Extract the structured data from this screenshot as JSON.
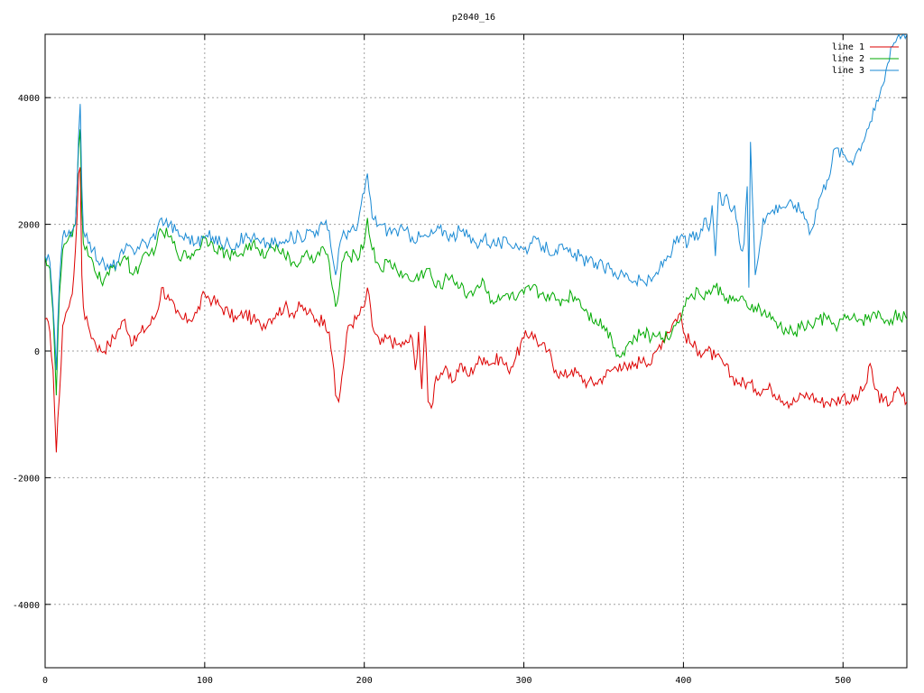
{
  "chart_data": {
    "type": "line",
    "title": "p2040_16",
    "xlim": [
      0,
      540
    ],
    "ylim": [
      -5000,
      5000
    ],
    "x_ticks": [
      0,
      100,
      200,
      300,
      400,
      500
    ],
    "y_ticks": [
      -4000,
      -2000,
      0,
      2000,
      4000
    ],
    "x_tick_labels": [
      "0",
      "100",
      "200",
      "300",
      "400",
      "500"
    ],
    "y_tick_labels": [
      "-4000",
      "-2000",
      "0",
      "2000",
      "4000"
    ],
    "grid": true,
    "legend_position": "top-right",
    "series": [
      {
        "name": "line 1",
        "color": "#dd0000",
        "x": [
          0,
          3,
          5,
          7,
          9,
          11,
          13,
          15,
          17,
          19,
          21,
          22,
          23,
          24,
          25,
          27,
          30,
          35,
          40,
          45,
          50,
          55,
          60,
          65,
          70,
          73,
          78,
          82,
          86,
          90,
          95,
          100,
          105,
          110,
          115,
          120,
          125,
          130,
          135,
          140,
          145,
          150,
          155,
          160,
          165,
          170,
          175,
          178,
          180,
          182,
          184,
          186,
          190,
          195,
          200,
          202,
          205,
          210,
          215,
          220,
          225,
          230,
          232,
          234,
          236,
          238,
          240,
          242,
          245,
          250,
          255,
          260,
          265,
          270,
          275,
          280,
          285,
          290,
          295,
          300,
          305,
          310,
          315,
          320,
          325,
          330,
          335,
          340,
          345,
          350,
          355,
          360,
          365,
          370,
          375,
          380,
          385,
          390,
          395,
          398,
          400,
          405,
          410,
          415,
          420,
          425,
          430,
          435,
          440,
          445,
          450,
          455,
          460,
          465,
          470,
          475,
          480,
          485,
          490,
          495,
          500,
          505,
          510,
          515,
          517,
          520,
          525,
          530,
          535,
          540
        ],
        "values": [
          500,
          300,
          -300,
          -1600,
          -700,
          400,
          600,
          700,
          900,
          1600,
          2800,
          2900,
          1200,
          700,
          500,
          400,
          200,
          0,
          100,
          300,
          500,
          100,
          300,
          400,
          600,
          1000,
          800,
          600,
          500,
          500,
          600,
          900,
          800,
          700,
          600,
          500,
          600,
          500,
          400,
          500,
          600,
          700,
          600,
          700,
          600,
          500,
          500,
          300,
          -100,
          -700,
          -800,
          -400,
          400,
          500,
          700,
          1000,
          400,
          100,
          200,
          100,
          100,
          200,
          -300,
          300,
          -600,
          400,
          -800,
          -900,
          -400,
          -300,
          -500,
          -200,
          -400,
          -200,
          -100,
          -200,
          -100,
          -300,
          -100,
          200,
          300,
          100,
          0,
          -300,
          -400,
          -300,
          -400,
          -500,
          -500,
          -400,
          -300,
          -200,
          -300,
          -200,
          -100,
          -200,
          100,
          300,
          500,
          600,
          300,
          100,
          0,
          0,
          -100,
          -200,
          -400,
          -500,
          -500,
          -600,
          -600,
          -600,
          -700,
          -800,
          -800,
          -700,
          -700,
          -800,
          -800,
          -800,
          -700,
          -800,
          -700,
          -500,
          -200,
          -600,
          -800,
          -800,
          -600,
          -800
        ]
      },
      {
        "name": "line 2",
        "color": "#00aa00",
        "x": [
          0,
          3,
          5,
          7,
          9,
          11,
          13,
          15,
          17,
          19,
          21,
          22,
          23,
          24,
          25,
          27,
          30,
          35,
          40,
          45,
          50,
          55,
          60,
          65,
          70,
          73,
          78,
          82,
          86,
          90,
          95,
          100,
          105,
          110,
          115,
          120,
          125,
          130,
          135,
          140,
          145,
          150,
          155,
          160,
          165,
          170,
          175,
          178,
          180,
          182,
          184,
          186,
          190,
          195,
          200,
          202,
          205,
          210,
          215,
          220,
          225,
          230,
          235,
          240,
          245,
          250,
          255,
          260,
          265,
          270,
          275,
          280,
          285,
          290,
          295,
          300,
          305,
          310,
          315,
          320,
          325,
          330,
          335,
          340,
          345,
          350,
          355,
          360,
          365,
          370,
          375,
          380,
          385,
          390,
          395,
          400,
          405,
          410,
          415,
          420,
          425,
          430,
          435,
          440,
          445,
          450,
          455,
          460,
          465,
          470,
          475,
          480,
          485,
          490,
          495,
          500,
          505,
          510,
          515,
          520,
          525,
          530,
          535,
          540
        ],
        "values": [
          1500,
          1300,
          600,
          -700,
          900,
          1600,
          1700,
          1800,
          1800,
          2000,
          3200,
          3500,
          2200,
          1700,
          1600,
          1500,
          1400,
          1100,
          1200,
          1400,
          1500,
          1200,
          1400,
          1500,
          1700,
          1900,
          1800,
          1600,
          1500,
          1500,
          1600,
          1800,
          1700,
          1600,
          1500,
          1500,
          1600,
          1700,
          1500,
          1600,
          1700,
          1500,
          1400,
          1400,
          1500,
          1500,
          1600,
          1400,
          1000,
          700,
          900,
          1400,
          1500,
          1500,
          1700,
          2100,
          1600,
          1300,
          1400,
          1300,
          1200,
          1100,
          1200,
          1300,
          1000,
          1100,
          1200,
          1000,
          900,
          1000,
          1100,
          800,
          800,
          900,
          800,
          900,
          1000,
          900,
          900,
          800,
          800,
          900,
          800,
          600,
          500,
          400,
          200,
          -100,
          100,
          200,
          300,
          200,
          300,
          200,
          400,
          700,
          900,
          900,
          900,
          1000,
          900,
          800,
          800,
          700,
          700,
          600,
          500,
          400,
          300,
          300,
          400,
          400,
          500,
          500,
          400,
          500,
          500,
          500,
          500,
          600,
          500,
          500,
          600,
          500
        ]
      },
      {
        "name": "line 3",
        "color": "#1a8ad4",
        "x": [
          0,
          3,
          5,
          7,
          9,
          11,
          13,
          15,
          17,
          19,
          21,
          22,
          23,
          24,
          25,
          27,
          30,
          35,
          40,
          45,
          50,
          55,
          60,
          65,
          70,
          73,
          78,
          82,
          86,
          90,
          95,
          100,
          105,
          110,
          115,
          120,
          125,
          130,
          135,
          140,
          145,
          150,
          155,
          160,
          165,
          170,
          175,
          178,
          180,
          182,
          184,
          186,
          190,
          195,
          200,
          202,
          205,
          210,
          215,
          220,
          225,
          230,
          235,
          240,
          245,
          250,
          255,
          260,
          265,
          270,
          275,
          280,
          285,
          290,
          295,
          300,
          305,
          310,
          315,
          320,
          325,
          330,
          335,
          340,
          345,
          350,
          355,
          360,
          365,
          370,
          375,
          380,
          385,
          390,
          395,
          400,
          403,
          405,
          410,
          412,
          414,
          416,
          418,
          420,
          422,
          425,
          428,
          430,
          432,
          434,
          436,
          438,
          440,
          441,
          442,
          445,
          450,
          455,
          460,
          465,
          470,
          475,
          478,
          480,
          485,
          490,
          495,
          500,
          505,
          510,
          515,
          520,
          525,
          530,
          535,
          538,
          540
        ],
        "values": [
          1500,
          1400,
          700,
          -300,
          1100,
          1800,
          1800,
          1900,
          1900,
          2000,
          3400,
          3900,
          2600,
          1900,
          1800,
          1700,
          1600,
          1400,
          1300,
          1400,
          1600,
          1600,
          1700,
          1700,
          1900,
          2100,
          2000,
          1900,
          1800,
          1800,
          1700,
          1800,
          1800,
          1700,
          1700,
          1700,
          1800,
          1800,
          1700,
          1700,
          1700,
          1700,
          1800,
          1800,
          1900,
          1900,
          2000,
          1900,
          1500,
          1200,
          1600,
          1800,
          1900,
          1900,
          2500,
          2800,
          2100,
          2000,
          1900,
          1900,
          1900,
          1800,
          1800,
          1800,
          1900,
          1900,
          1800,
          1900,
          1800,
          1700,
          1800,
          1700,
          1700,
          1700,
          1700,
          1600,
          1700,
          1700,
          1600,
          1600,
          1600,
          1500,
          1500,
          1400,
          1400,
          1300,
          1300,
          1200,
          1200,
          1100,
          1100,
          1100,
          1300,
          1500,
          1700,
          1800,
          1700,
          1800,
          1800,
          1900,
          2100,
          1900,
          2300,
          1500,
          2500,
          2300,
          2400,
          2200,
          2300,
          2000,
          1600,
          1700,
          2600,
          1000,
          3300,
          1200,
          2100,
          2200,
          2300,
          2300,
          2300,
          2200,
          2000,
          1900,
          2400,
          2700,
          3200,
          3100,
          3000,
          3200,
          3500,
          3800,
          4200,
          4800,
          5000,
          5000,
          5000
        ]
      }
    ]
  },
  "chart": {
    "title": "p2040_16",
    "legend": [
      "line 1",
      "line 2",
      "line 3"
    ]
  }
}
